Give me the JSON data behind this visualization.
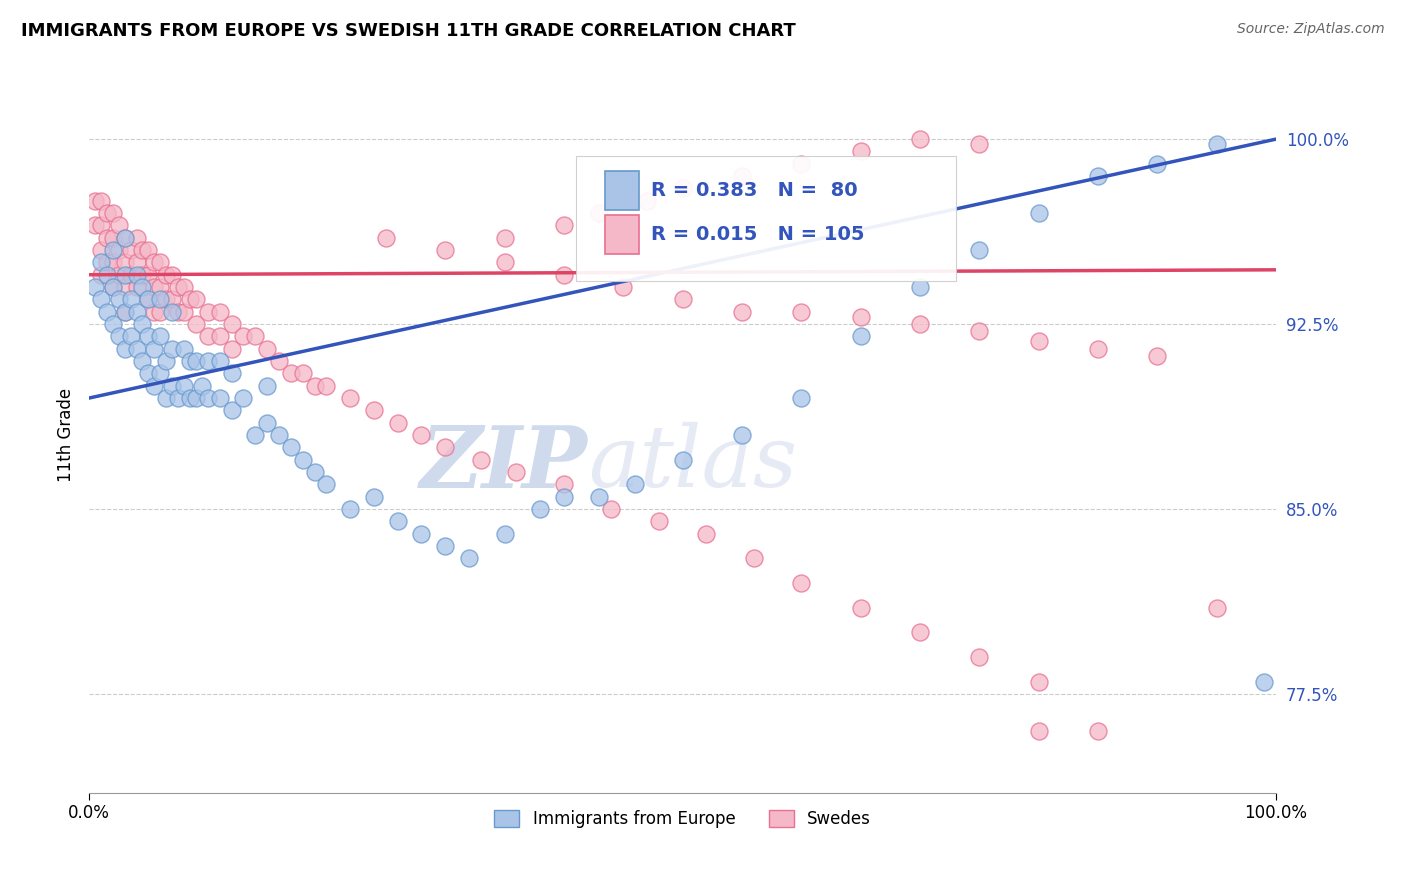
{
  "title": "IMMIGRANTS FROM EUROPE VS SWEDISH 11TH GRADE CORRELATION CHART",
  "source_text": "Source: ZipAtlas.com",
  "ylabel": "11th Grade",
  "xlim": [
    0.0,
    1.0
  ],
  "ylim": [
    0.735,
    1.025
  ],
  "yticks": [
    0.775,
    0.85,
    0.925,
    1.0
  ],
  "ytick_labels": [
    "77.5%",
    "85.0%",
    "92.5%",
    "100.0%"
  ],
  "xtick_labels": [
    "0.0%",
    "100.0%"
  ],
  "xticks": [
    0.0,
    1.0
  ],
  "blue_R": 0.383,
  "blue_N": 80,
  "pink_R": 0.015,
  "pink_N": 105,
  "blue_color": "#aac4e8",
  "pink_color": "#f4b8c8",
  "blue_edge_color": "#6699cc",
  "pink_edge_color": "#e87090",
  "blue_line_color": "#3355bb",
  "pink_line_color": "#dd4466",
  "legend_label_blue": "Immigrants from Europe",
  "legend_label_pink": "Swedes",
  "blue_trend_x0": 0.0,
  "blue_trend_y0": 0.895,
  "blue_trend_x1": 1.0,
  "blue_trend_y1": 1.0,
  "pink_trend_x0": 0.0,
  "pink_trend_y0": 0.945,
  "pink_trend_x1": 1.0,
  "pink_trend_y1": 0.947,
  "blue_x": [
    0.005,
    0.01,
    0.01,
    0.015,
    0.015,
    0.02,
    0.02,
    0.02,
    0.025,
    0.025,
    0.03,
    0.03,
    0.03,
    0.03,
    0.035,
    0.035,
    0.04,
    0.04,
    0.04,
    0.045,
    0.045,
    0.045,
    0.05,
    0.05,
    0.05,
    0.055,
    0.055,
    0.06,
    0.06,
    0.06,
    0.065,
    0.065,
    0.07,
    0.07,
    0.07,
    0.075,
    0.08,
    0.08,
    0.085,
    0.085,
    0.09,
    0.09,
    0.095,
    0.1,
    0.1,
    0.11,
    0.11,
    0.12,
    0.12,
    0.13,
    0.14,
    0.15,
    0.15,
    0.16,
    0.17,
    0.18,
    0.19,
    0.2,
    0.22,
    0.24,
    0.26,
    0.28,
    0.3,
    0.32,
    0.35,
    0.38,
    0.4,
    0.43,
    0.46,
    0.5,
    0.55,
    0.6,
    0.65,
    0.7,
    0.75,
    0.8,
    0.85,
    0.9,
    0.95,
    0.99
  ],
  "blue_y": [
    0.94,
    0.935,
    0.95,
    0.93,
    0.945,
    0.925,
    0.94,
    0.955,
    0.92,
    0.935,
    0.915,
    0.93,
    0.945,
    0.96,
    0.92,
    0.935,
    0.915,
    0.93,
    0.945,
    0.91,
    0.925,
    0.94,
    0.905,
    0.92,
    0.935,
    0.9,
    0.915,
    0.905,
    0.92,
    0.935,
    0.895,
    0.91,
    0.9,
    0.915,
    0.93,
    0.895,
    0.9,
    0.915,
    0.895,
    0.91,
    0.895,
    0.91,
    0.9,
    0.895,
    0.91,
    0.895,
    0.91,
    0.89,
    0.905,
    0.895,
    0.88,
    0.885,
    0.9,
    0.88,
    0.875,
    0.87,
    0.865,
    0.86,
    0.85,
    0.855,
    0.845,
    0.84,
    0.835,
    0.83,
    0.84,
    0.85,
    0.855,
    0.855,
    0.86,
    0.87,
    0.88,
    0.895,
    0.92,
    0.94,
    0.955,
    0.97,
    0.985,
    0.99,
    0.998,
    0.78
  ],
  "pink_x": [
    0.005,
    0.005,
    0.01,
    0.01,
    0.01,
    0.01,
    0.015,
    0.015,
    0.015,
    0.02,
    0.02,
    0.02,
    0.02,
    0.025,
    0.025,
    0.025,
    0.03,
    0.03,
    0.03,
    0.03,
    0.035,
    0.035,
    0.04,
    0.04,
    0.04,
    0.045,
    0.045,
    0.05,
    0.05,
    0.05,
    0.055,
    0.055,
    0.055,
    0.06,
    0.06,
    0.06,
    0.065,
    0.065,
    0.07,
    0.07,
    0.075,
    0.075,
    0.08,
    0.08,
    0.085,
    0.09,
    0.09,
    0.1,
    0.1,
    0.11,
    0.11,
    0.12,
    0.12,
    0.13,
    0.14,
    0.15,
    0.16,
    0.17,
    0.18,
    0.19,
    0.2,
    0.22,
    0.24,
    0.26,
    0.28,
    0.3,
    0.33,
    0.36,
    0.4,
    0.44,
    0.48,
    0.52,
    0.56,
    0.6,
    0.65,
    0.7,
    0.75,
    0.8,
    0.35,
    0.4,
    0.43,
    0.47,
    0.5,
    0.55,
    0.6,
    0.65,
    0.7,
    0.75,
    0.8,
    0.85,
    0.25,
    0.3,
    0.35,
    0.4,
    0.45,
    0.5,
    0.55,
    0.6,
    0.65,
    0.7,
    0.75,
    0.8,
    0.85,
    0.9,
    0.95
  ],
  "pink_y": [
    0.975,
    0.965,
    0.975,
    0.965,
    0.955,
    0.945,
    0.97,
    0.96,
    0.95,
    0.97,
    0.96,
    0.95,
    0.94,
    0.965,
    0.955,
    0.945,
    0.96,
    0.95,
    0.94,
    0.93,
    0.955,
    0.945,
    0.96,
    0.95,
    0.94,
    0.955,
    0.945,
    0.955,
    0.945,
    0.935,
    0.95,
    0.94,
    0.93,
    0.95,
    0.94,
    0.93,
    0.945,
    0.935,
    0.945,
    0.935,
    0.94,
    0.93,
    0.94,
    0.93,
    0.935,
    0.935,
    0.925,
    0.93,
    0.92,
    0.93,
    0.92,
    0.925,
    0.915,
    0.92,
    0.92,
    0.915,
    0.91,
    0.905,
    0.905,
    0.9,
    0.9,
    0.895,
    0.89,
    0.885,
    0.88,
    0.875,
    0.87,
    0.865,
    0.86,
    0.85,
    0.845,
    0.84,
    0.83,
    0.82,
    0.81,
    0.8,
    0.79,
    0.78,
    0.96,
    0.965,
    0.97,
    0.975,
    0.98,
    0.985,
    0.99,
    0.995,
    1.0,
    0.998,
    0.76,
    0.76,
    0.96,
    0.955,
    0.95,
    0.945,
    0.94,
    0.935,
    0.93,
    0.93,
    0.928,
    0.925,
    0.922,
    0.918,
    0.915,
    0.912,
    0.81
  ]
}
